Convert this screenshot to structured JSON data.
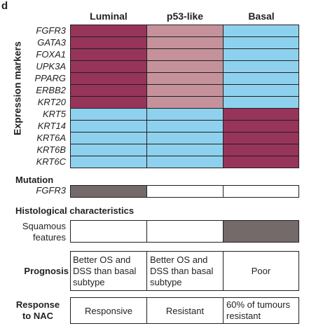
{
  "panel_letter": "d",
  "columns": [
    "Luminal",
    "p53-like",
    "Basal"
  ],
  "axis_label": "Expression markers",
  "genes": [
    "FGFR3",
    "GATA3",
    "FOXA1",
    "UPK3A",
    "PPARG",
    "ERBB2",
    "KRT20",
    "KRT5",
    "KRT14",
    "KRT6A",
    "KRT6B",
    "KRT6C"
  ],
  "heatmap_levels": [
    [
      "high",
      "mid",
      "low"
    ],
    [
      "high",
      "mid",
      "low"
    ],
    [
      "high",
      "mid",
      "low"
    ],
    [
      "high",
      "mid",
      "low"
    ],
    [
      "high",
      "mid",
      "low"
    ],
    [
      "high",
      "mid",
      "low"
    ],
    [
      "high",
      "mid",
      "low"
    ],
    [
      "low",
      "low",
      "high"
    ],
    [
      "low",
      "low",
      "high"
    ],
    [
      "low",
      "low",
      "high"
    ],
    [
      "low",
      "low",
      "high"
    ],
    [
      "low",
      "low",
      "high"
    ]
  ],
  "colors": {
    "high": "#97345a",
    "mid": "#c5929c",
    "low": "#8ed1ee",
    "present": "#756a6a",
    "absent": "#ffffff",
    "border": "#231f20"
  },
  "mutation": {
    "title": "Mutation",
    "gene": "FGFR3",
    "values": [
      "present",
      "absent",
      "absent"
    ]
  },
  "histology": {
    "title": "Histological characteristics",
    "label_line1": "Squamous",
    "label_line2": "features",
    "values": [
      "absent",
      "absent",
      "present"
    ]
  },
  "prognosis": {
    "label": "Prognosis",
    "luminal_lines": [
      "Better OS and",
      "DSS than basal",
      "subtype"
    ],
    "p53_lines": [
      "Better OS and",
      "DSS than basal",
      "subtype"
    ],
    "basal": "Poor"
  },
  "response": {
    "label_line1": "Response",
    "label_line2": "to NAC",
    "luminal": "Responsive",
    "p53": "Resistant",
    "basal_lines": [
      "60% of tumours",
      "resistant"
    ]
  }
}
